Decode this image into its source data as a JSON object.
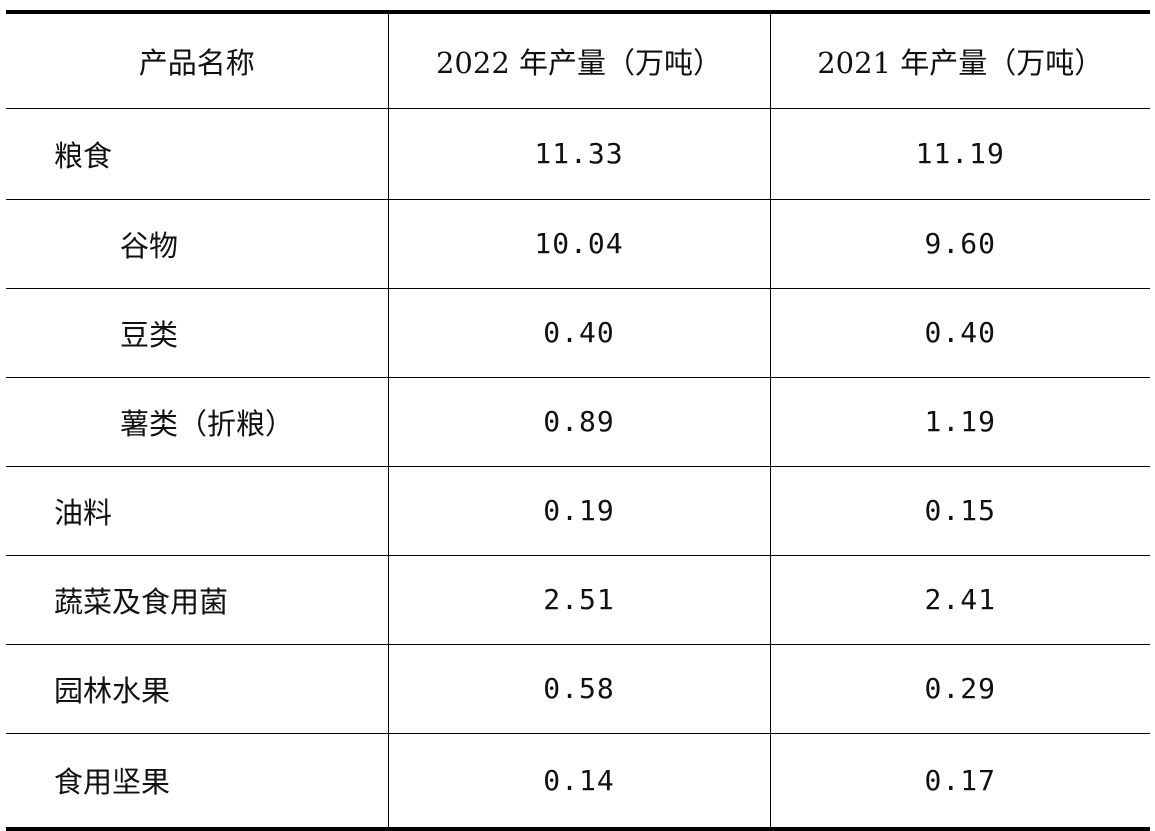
{
  "table": {
    "headers": [
      "产品名称",
      "2022 年产量（万吨）",
      "2021 年产量（万吨）"
    ],
    "rows": [
      {
        "name": "粮食",
        "y2022": "11.33",
        "y2021": "11.19",
        "indent": false
      },
      {
        "name": "谷物",
        "y2022": "10.04",
        "y2021": "9.60",
        "indent": true
      },
      {
        "name": "豆类",
        "y2022": "0.40",
        "y2021": "0.40",
        "indent": true
      },
      {
        "name": "薯类（折粮）",
        "y2022": "0.89",
        "y2021": "1.19",
        "indent": true
      },
      {
        "name": "油料",
        "y2022": "0.19",
        "y2021": "0.15",
        "indent": false
      },
      {
        "name": "蔬菜及食用菌",
        "y2022": "2.51",
        "y2021": "2.41",
        "indent": false
      },
      {
        "name": "园林水果",
        "y2022": "0.58",
        "y2021": "0.29",
        "indent": false
      },
      {
        "name": "食用坚果",
        "y2022": "0.14",
        "y2021": "0.17",
        "indent": false
      }
    ]
  }
}
